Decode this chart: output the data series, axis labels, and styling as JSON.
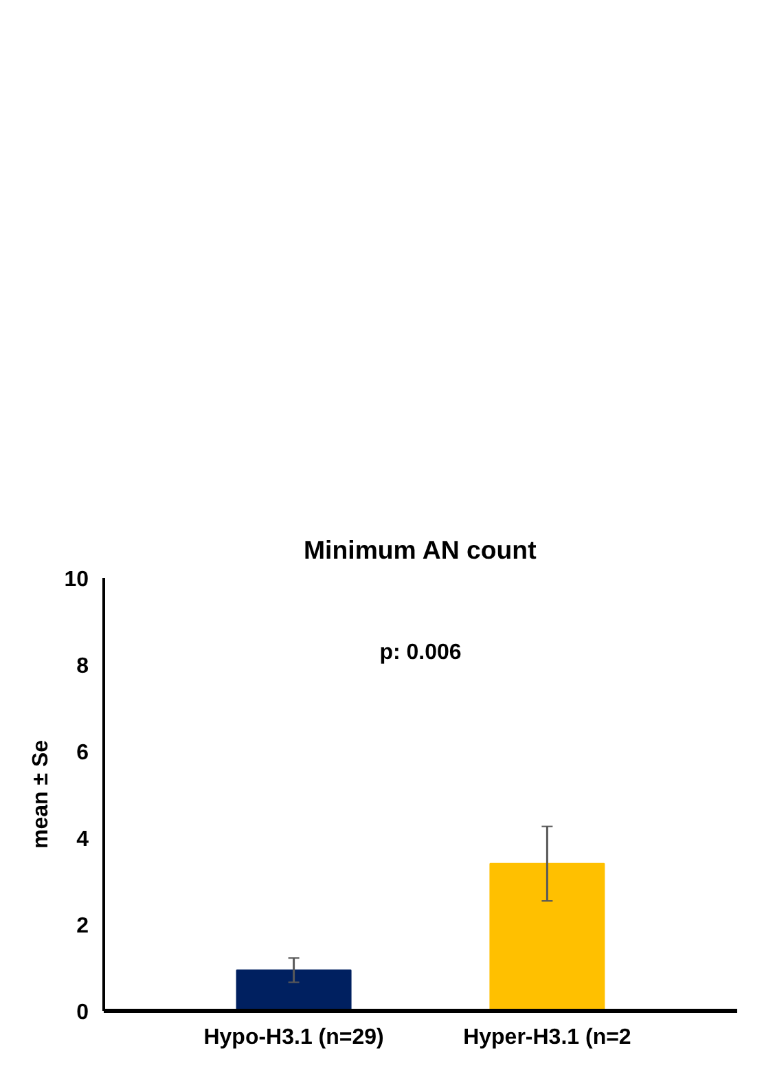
{
  "chart_data": {
    "type": "bar",
    "title": "Minimum AN count",
    "ylabel": "mean ± Se",
    "categories": [
      "Hypo-H3.1 (n=29)",
      "Hyper-H3.1 (n=2"
    ],
    "values": [
      0.94,
      3.4
    ],
    "colors": [
      "#002060",
      "#ffc000"
    ],
    "errors": [
      0.28,
      0.86
    ],
    "ylim": [
      0,
      10
    ],
    "yticks": [
      0,
      2,
      4,
      6,
      8,
      10
    ],
    "grid": false,
    "annotations": [
      "p: 0.006"
    ]
  }
}
